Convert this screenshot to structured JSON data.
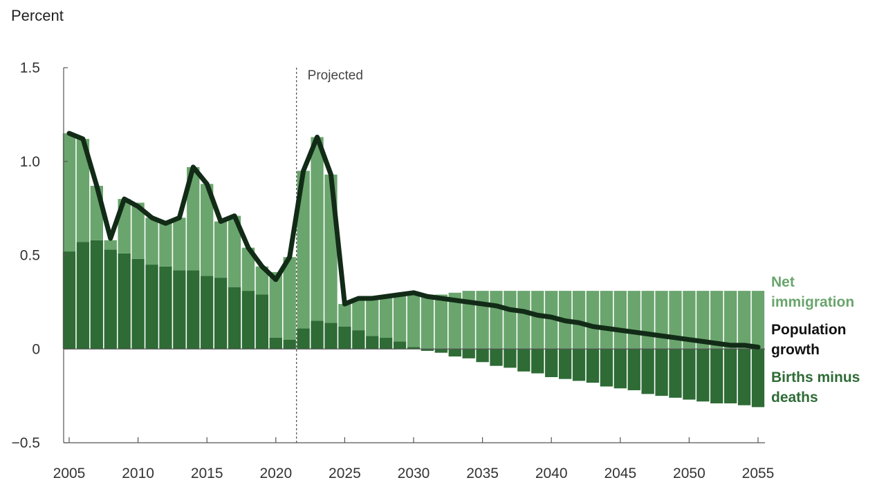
{
  "chart_data": {
    "type": "bar",
    "title": "",
    "ylabel": "Percent",
    "xlabel": "",
    "ylim": [
      -0.5,
      1.5
    ],
    "yticks": [
      1.5,
      1.0,
      0.5,
      0,
      -0.5
    ],
    "ytick_labels": [
      "1.5",
      "1.0",
      "0.5",
      "0",
      "−0.5"
    ],
    "xlim": [
      2005,
      2055
    ],
    "xticks": [
      2005,
      2010,
      2015,
      2020,
      2025,
      2030,
      2035,
      2040,
      2045,
      2050,
      2055
    ],
    "xtick_labels": [
      "2005",
      "2010",
      "2015",
      "2020",
      "2025",
      "2030",
      "2035",
      "2040",
      "2045",
      "2050",
      "2055"
    ],
    "projected_from": 2021.5,
    "projected_label": "Projected",
    "years": [
      2005,
      2006,
      2007,
      2008,
      2009,
      2010,
      2011,
      2012,
      2013,
      2014,
      2015,
      2016,
      2017,
      2018,
      2019,
      2020,
      2021,
      2022,
      2023,
      2024,
      2025,
      2026,
      2027,
      2028,
      2029,
      2030,
      2031,
      2032,
      2033,
      2034,
      2035,
      2036,
      2037,
      2038,
      2039,
      2040,
      2041,
      2042,
      2043,
      2044,
      2045,
      2046,
      2047,
      2048,
      2049,
      2050,
      2051,
      2052,
      2053,
      2054,
      2055
    ],
    "series": [
      {
        "name": "Births minus deaths",
        "color": "#2e6b35",
        "values": [
          0.52,
          0.57,
          0.58,
          0.53,
          0.51,
          0.48,
          0.45,
          0.44,
          0.42,
          0.42,
          0.39,
          0.38,
          0.33,
          0.31,
          0.29,
          0.06,
          0.05,
          0.11,
          0.15,
          0.14,
          0.12,
          0.1,
          0.07,
          0.06,
          0.04,
          0.01,
          -0.01,
          -0.02,
          -0.04,
          -0.05,
          -0.07,
          -0.09,
          -0.1,
          -0.12,
          -0.13,
          -0.15,
          -0.16,
          -0.17,
          -0.18,
          -0.2,
          -0.21,
          -0.22,
          -0.24,
          -0.25,
          -0.26,
          -0.27,
          -0.28,
          -0.29,
          -0.29,
          -0.3,
          -0.31
        ]
      },
      {
        "name": "Net immigration",
        "color": "#6aa56d",
        "values": [
          0.63,
          0.55,
          0.29,
          0.05,
          0.29,
          0.3,
          0.25,
          0.23,
          0.28,
          0.55,
          0.49,
          0.3,
          0.38,
          0.23,
          0.15,
          0.35,
          0.44,
          0.84,
          0.98,
          0.79,
          0.12,
          0.17,
          0.2,
          0.22,
          0.25,
          0.29,
          0.29,
          0.29,
          0.3,
          0.31,
          0.31,
          0.31,
          0.31,
          0.31,
          0.31,
          0.31,
          0.31,
          0.31,
          0.31,
          0.31,
          0.31,
          0.31,
          0.31,
          0.31,
          0.31,
          0.31,
          0.31,
          0.31,
          0.31,
          0.31,
          0.31
        ]
      },
      {
        "name": "Population growth",
        "type": "line",
        "color": "#122b17",
        "values": [
          1.15,
          1.12,
          0.87,
          0.59,
          0.8,
          0.76,
          0.7,
          0.67,
          0.7,
          0.97,
          0.88,
          0.68,
          0.71,
          0.54,
          0.44,
          0.37,
          0.49,
          0.95,
          1.13,
          0.93,
          0.24,
          0.27,
          0.27,
          0.28,
          0.29,
          0.3,
          0.28,
          0.27,
          0.26,
          0.25,
          0.24,
          0.23,
          0.21,
          0.2,
          0.18,
          0.17,
          0.15,
          0.14,
          0.12,
          0.11,
          0.1,
          0.09,
          0.08,
          0.07,
          0.06,
          0.05,
          0.04,
          0.03,
          0.02,
          0.02,
          0.01
        ]
      }
    ],
    "legend": [
      {
        "label": "Net immigration",
        "color": "#6aa56d"
      },
      {
        "label": "Population growth",
        "color": "#111111"
      },
      {
        "label": "Births minus deaths",
        "color": "#2e6b35"
      }
    ]
  }
}
